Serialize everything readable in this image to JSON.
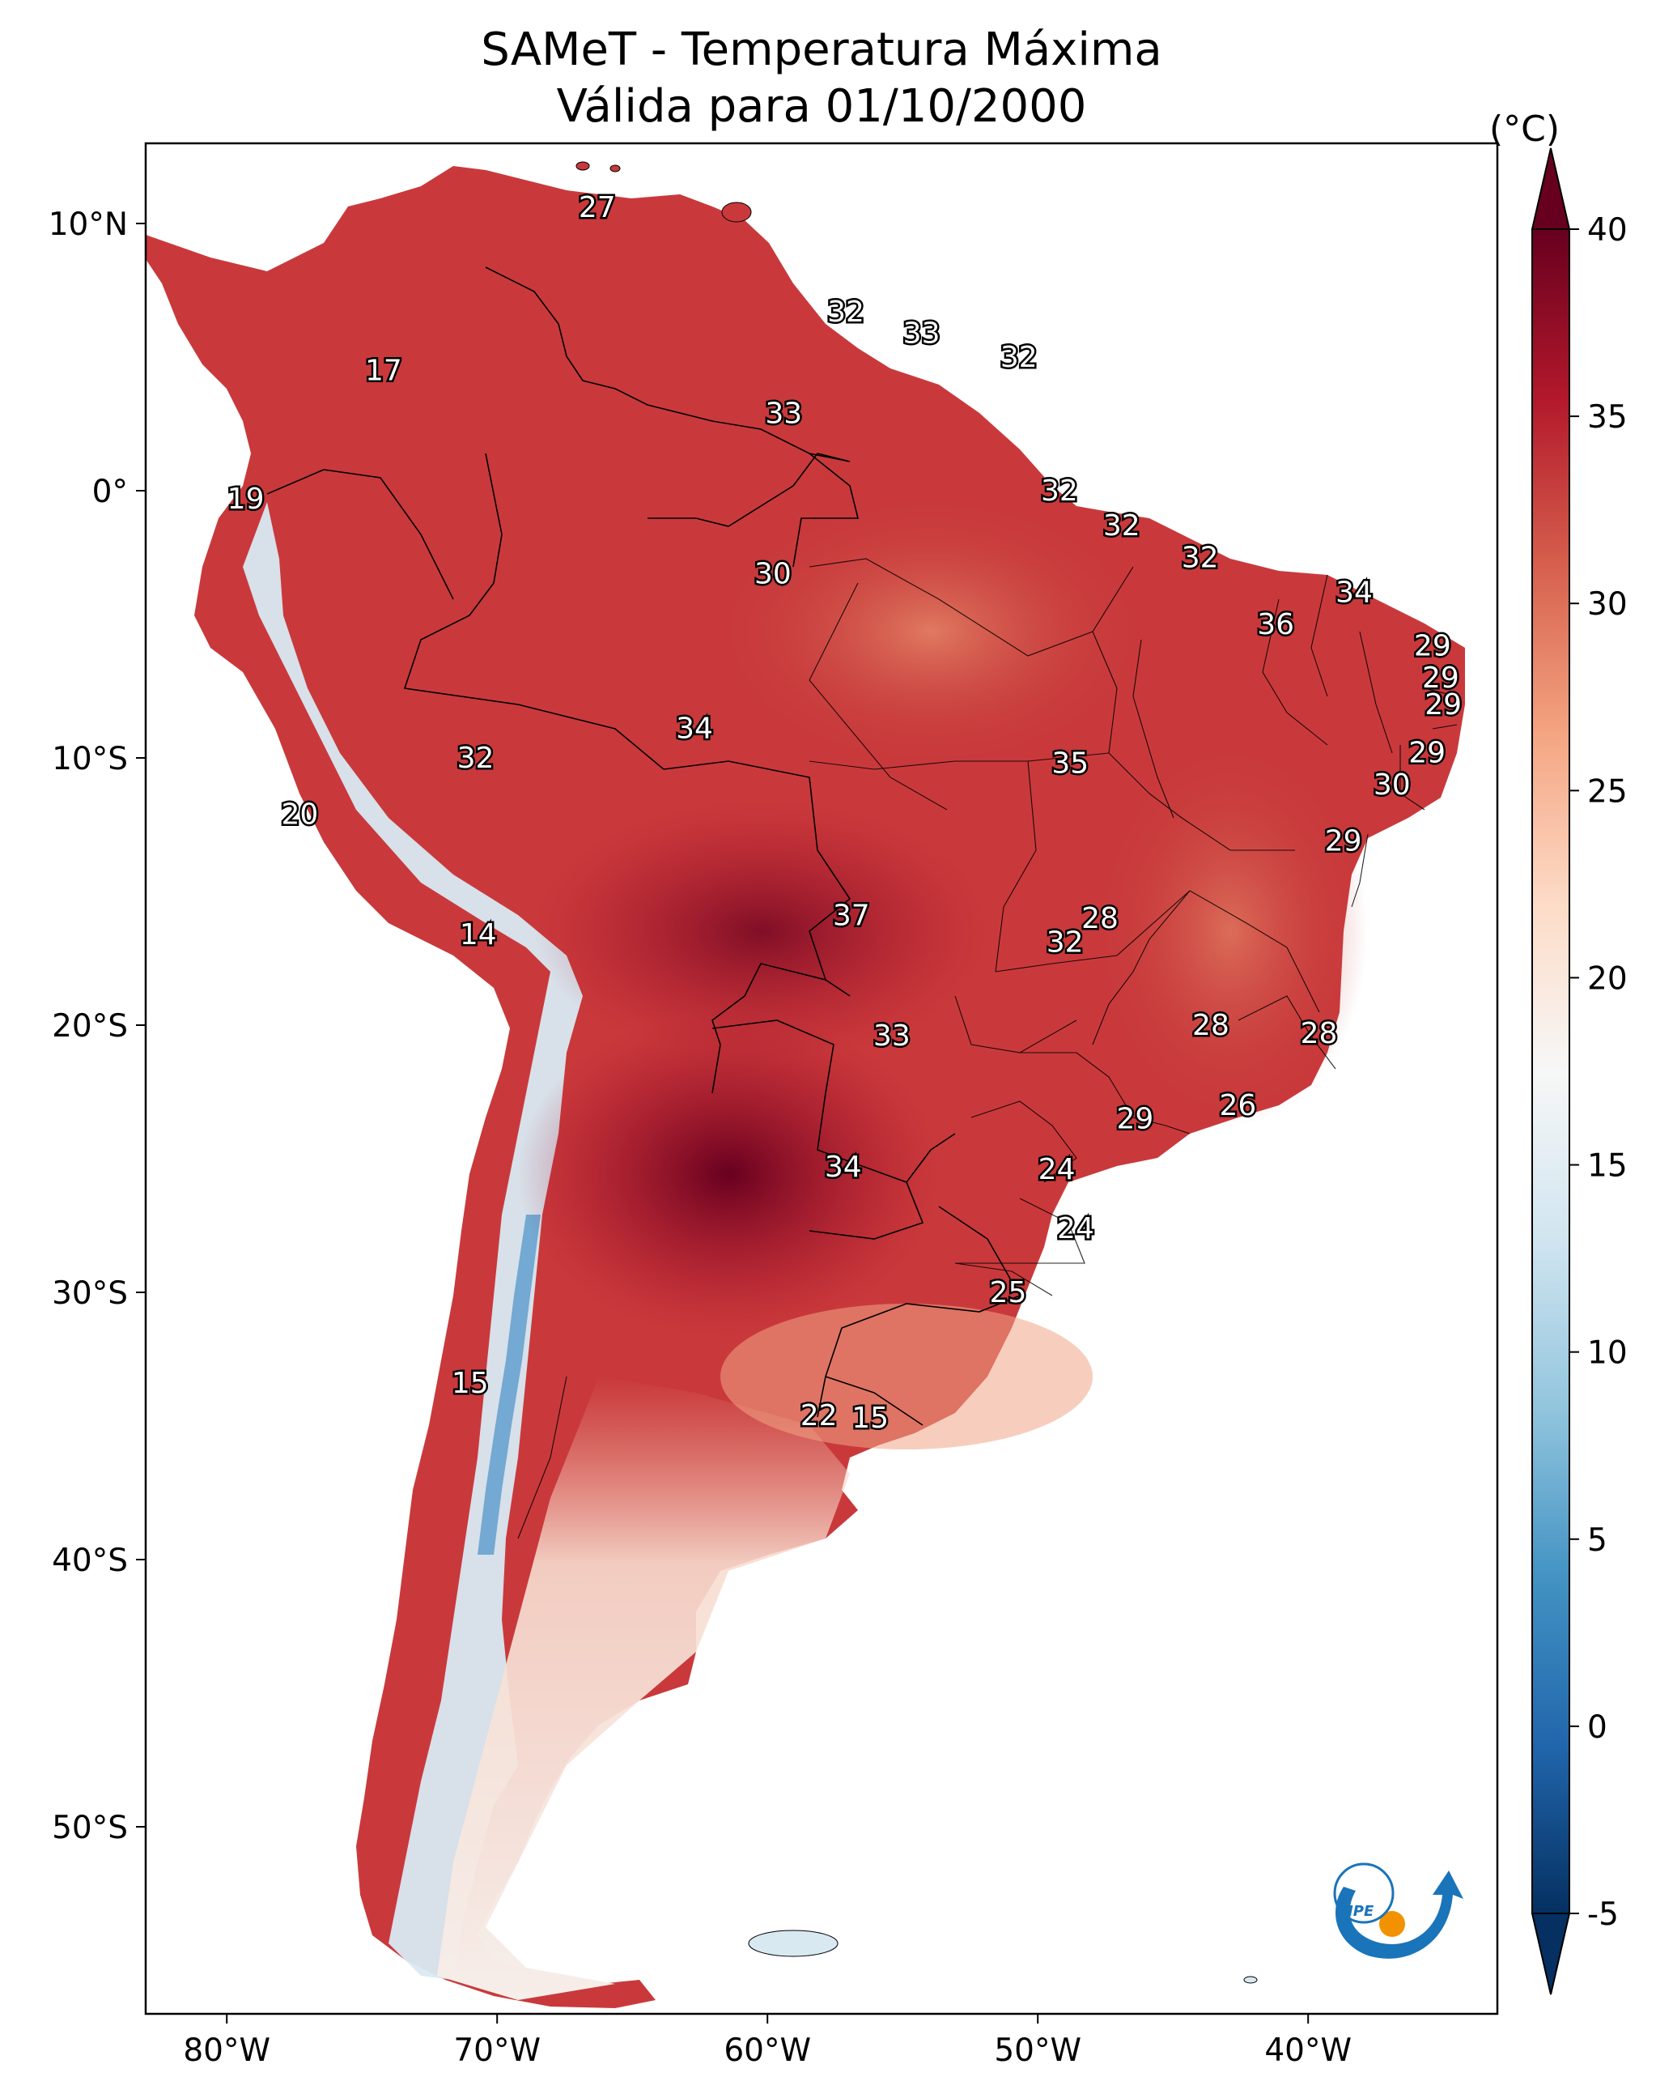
{
  "title": {
    "line1": "SAMeT - Temperatura Máxima",
    "line2": "Válida para 01/10/2000"
  },
  "colorbar": {
    "unit": "(°C)",
    "min": -5,
    "max": 40,
    "ticks": [
      "40",
      "35",
      "30",
      "25",
      "20",
      "15",
      "10",
      "5",
      "0",
      "-5"
    ],
    "tick_values": [
      40,
      35,
      30,
      25,
      20,
      15,
      10,
      5,
      0,
      -5
    ],
    "colors": [
      "#67001f",
      "#b2182b",
      "#d6604d",
      "#f4a582",
      "#fddbc7",
      "#f7f7f7",
      "#d1e5f0",
      "#92c5de",
      "#4393c3",
      "#2166ac",
      "#053061"
    ]
  },
  "axes": {
    "lon_range": [
      -83,
      -33
    ],
    "lat_range": [
      -57,
      13
    ],
    "lon_ticks": [
      {
        "value": -80,
        "label": "80°W"
      },
      {
        "value": -70,
        "label": "70°W"
      },
      {
        "value": -60,
        "label": "60°W"
      },
      {
        "value": -50,
        "label": "50°W"
      },
      {
        "value": -40,
        "label": "40°W"
      }
    ],
    "lat_ticks": [
      {
        "value": 10,
        "label": "10°N"
      },
      {
        "value": 0,
        "label": "0°"
      },
      {
        "value": -10,
        "label": "10°S"
      },
      {
        "value": -20,
        "label": "20°S"
      },
      {
        "value": -30,
        "label": "30°S"
      },
      {
        "value": -40,
        "label": "40°S"
      },
      {
        "value": -50,
        "label": "50°S"
      }
    ]
  },
  "point_values": [
    {
      "lon": -66.3,
      "lat": 10.6,
      "value": "27"
    },
    {
      "lon": -74.2,
      "lat": 4.5,
      "value": "17"
    },
    {
      "lon": -57.1,
      "lat": 6.7,
      "value": "32"
    },
    {
      "lon": -54.3,
      "lat": 5.9,
      "value": "33"
    },
    {
      "lon": -50.7,
      "lat": 5.0,
      "value": "32"
    },
    {
      "lon": -59.4,
      "lat": 2.9,
      "value": "33"
    },
    {
      "lon": -49.2,
      "lat": 0.0,
      "value": "32"
    },
    {
      "lon": -79.3,
      "lat": -0.3,
      "value": "19"
    },
    {
      "lon": -59.8,
      "lat": -3.1,
      "value": "30"
    },
    {
      "lon": -46.9,
      "lat": -1.3,
      "value": "32"
    },
    {
      "lon": -44.0,
      "lat": -2.5,
      "value": "32"
    },
    {
      "lon": -41.2,
      "lat": -5.0,
      "value": "36"
    },
    {
      "lon": -38.3,
      "lat": -3.8,
      "value": "34"
    },
    {
      "lon": -35.4,
      "lat": -5.8,
      "value": "29"
    },
    {
      "lon": -35.1,
      "lat": -7.0,
      "value": "29"
    },
    {
      "lon": -35.0,
      "lat": -8.0,
      "value": "29"
    },
    {
      "lon": -35.6,
      "lat": -9.8,
      "value": "29"
    },
    {
      "lon": -36.9,
      "lat": -11.0,
      "value": "30"
    },
    {
      "lon": -38.7,
      "lat": -13.1,
      "value": "29"
    },
    {
      "lon": -62.7,
      "lat": -8.9,
      "value": "34"
    },
    {
      "lon": -70.8,
      "lat": -10.0,
      "value": "32"
    },
    {
      "lon": -48.8,
      "lat": -10.2,
      "value": "35"
    },
    {
      "lon": -77.3,
      "lat": -12.1,
      "value": "20"
    },
    {
      "lon": -56.9,
      "lat": -15.9,
      "value": "37"
    },
    {
      "lon": -70.7,
      "lat": -16.6,
      "value": "14"
    },
    {
      "lon": -47.7,
      "lat": -16.0,
      "value": "28"
    },
    {
      "lon": -49.0,
      "lat": -16.9,
      "value": "32"
    },
    {
      "lon": -55.4,
      "lat": -20.4,
      "value": "33"
    },
    {
      "lon": -43.6,
      "lat": -20.0,
      "value": "28"
    },
    {
      "lon": -39.6,
      "lat": -20.3,
      "value": "28"
    },
    {
      "lon": -42.6,
      "lat": -23.0,
      "value": "26"
    },
    {
      "lon": -46.4,
      "lat": -23.5,
      "value": "29"
    },
    {
      "lon": -57.2,
      "lat": -25.3,
      "value": "34"
    },
    {
      "lon": -49.3,
      "lat": -25.4,
      "value": "24"
    },
    {
      "lon": -48.6,
      "lat": -27.6,
      "value": "24"
    },
    {
      "lon": -51.1,
      "lat": -30.0,
      "value": "25"
    },
    {
      "lon": -71.0,
      "lat": -33.4,
      "value": "15"
    },
    {
      "lon": -58.1,
      "lat": -34.6,
      "value": "22"
    },
    {
      "lon": -56.2,
      "lat": -34.7,
      "value": "15"
    }
  ],
  "logo": {
    "text": "INPE"
  }
}
